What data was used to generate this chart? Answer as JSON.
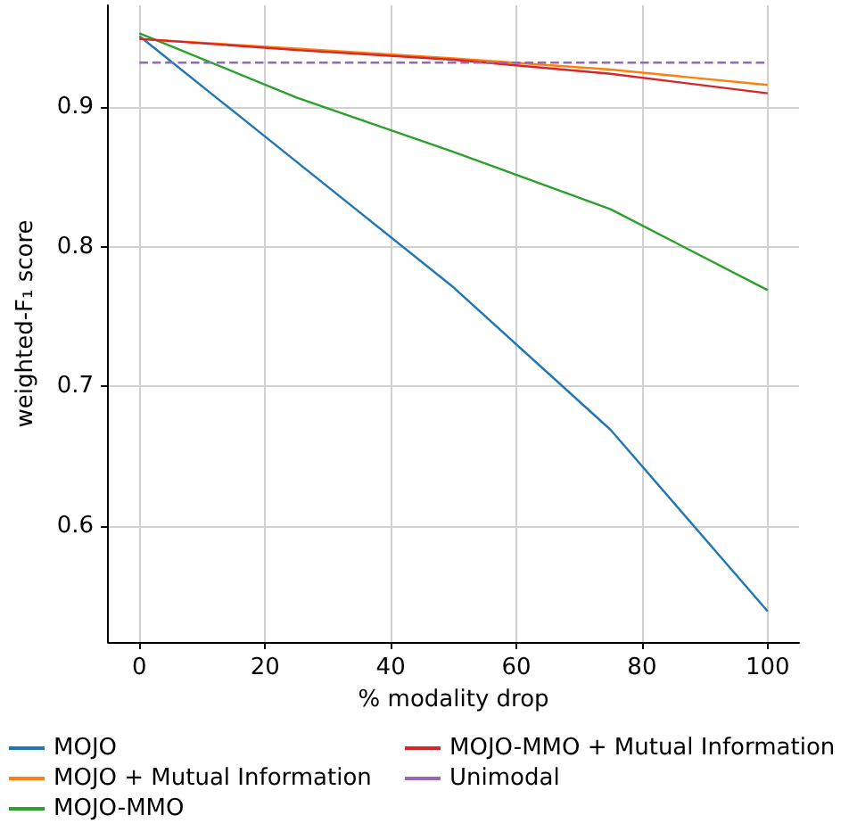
{
  "chart_data": {
    "type": "line",
    "xlabel": "% modality drop",
    "ylabel": "weighted-F₁ score",
    "x": [
      0,
      25,
      50,
      75,
      100
    ],
    "series": [
      {
        "name": "MOJO",
        "color": "#1f77b4",
        "values": [
          0.951,
          0.861,
          0.771,
          0.669,
          0.539
        ]
      },
      {
        "name": "MOJO + Mutual Information",
        "color": "#ff7f0e",
        "values": [
          0.949,
          0.942,
          0.935,
          0.927,
          0.916
        ]
      },
      {
        "name": "MOJO-MMO",
        "color": "#2ca02c",
        "values": [
          0.953,
          0.907,
          0.868,
          0.827,
          0.769
        ]
      },
      {
        "name": "MOJO-MMO + Mutual Information",
        "color": "#d62728",
        "values": [
          0.949,
          0.941,
          0.934,
          0.924,
          0.91
        ]
      },
      {
        "name": "Unimodal",
        "color": "#9467bd",
        "line_style": "dashed",
        "values": [
          0.932,
          0.932,
          0.932,
          0.932,
          0.932
        ]
      }
    ],
    "xlim": [
      -5,
      105
    ],
    "ylim": [
      0.517,
      0.973
    ],
    "xticks": [
      0,
      20,
      40,
      60,
      80,
      100
    ],
    "yticks": [
      0.6,
      0.7,
      0.8,
      0.9
    ],
    "grid": true,
    "legend": "bottom",
    "marker": "none",
    "line_style": "solid"
  }
}
